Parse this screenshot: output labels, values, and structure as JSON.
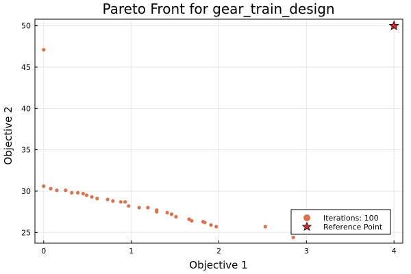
{
  "chart_data": {
    "type": "scatter",
    "title": "Pareto Front for gear_train_design",
    "xlabel": "Objective 1",
    "ylabel": "Objective 2",
    "xlim": [
      -0.1,
      4.1
    ],
    "ylim": [
      23.7,
      50.8
    ],
    "xticks": [
      0,
      1,
      2,
      3,
      4
    ],
    "yticks": [
      25,
      30,
      35,
      40,
      45,
      50
    ],
    "grid": true,
    "legend_position": "bottom-right",
    "series": [
      {
        "name": "Iterations: 100",
        "marker": "circle",
        "color": "#e26f46",
        "points": [
          [
            0.0,
            47.1
          ],
          [
            0.0,
            30.6
          ],
          [
            0.08,
            30.3
          ],
          [
            0.15,
            30.1
          ],
          [
            0.25,
            30.1
          ],
          [
            0.32,
            29.8
          ],
          [
            0.39,
            29.8
          ],
          [
            0.45,
            29.7
          ],
          [
            0.49,
            29.5
          ],
          [
            0.55,
            29.3
          ],
          [
            0.61,
            29.1
          ],
          [
            0.73,
            29.0
          ],
          [
            0.79,
            28.8
          ],
          [
            0.88,
            28.7
          ],
          [
            0.93,
            28.7
          ],
          [
            0.97,
            28.2
          ],
          [
            1.09,
            28.0
          ],
          [
            1.19,
            28.0
          ],
          [
            1.29,
            27.7
          ],
          [
            1.29,
            27.5
          ],
          [
            1.41,
            27.4
          ],
          [
            1.46,
            27.2
          ],
          [
            1.51,
            26.9
          ],
          [
            1.66,
            26.6
          ],
          [
            1.69,
            26.4
          ],
          [
            1.82,
            26.3
          ],
          [
            1.84,
            26.2
          ],
          [
            1.91,
            25.9
          ],
          [
            1.97,
            25.7
          ],
          [
            2.53,
            25.7
          ],
          [
            2.85,
            24.4
          ]
        ]
      },
      {
        "name": "Reference Point",
        "marker": "star",
        "color": "#e0262b",
        "points": [
          [
            4.0,
            50.0
          ]
        ]
      }
    ]
  }
}
